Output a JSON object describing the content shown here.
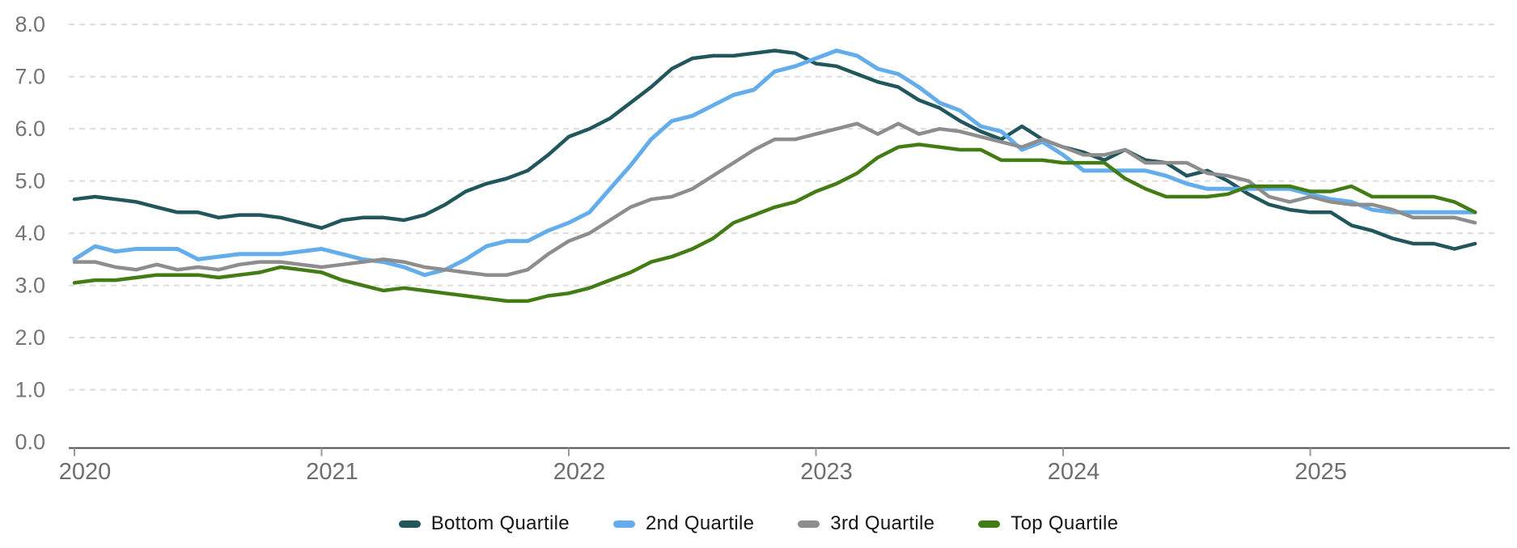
{
  "chart_data": {
    "type": "line",
    "title": "",
    "xlabel": "",
    "ylabel": "",
    "x_unit": "month",
    "x_start": "2020-01",
    "x_end": "2025-09",
    "x_tick_labels": [
      "2020",
      "2021",
      "2022",
      "2023",
      "2024",
      "2025"
    ],
    "ylim": [
      0.0,
      8.0
    ],
    "y_ticks": [
      0.0,
      1.0,
      2.0,
      3.0,
      4.0,
      5.0,
      6.0,
      7.0,
      8.0
    ],
    "y_tick_labels": [
      "0.0",
      "1.0",
      "2.0",
      "3.0",
      "4.0",
      "5.0",
      "6.0",
      "7.0",
      "8.0"
    ],
    "grid": "horizontal-dashed",
    "legend_position": "bottom",
    "series": [
      {
        "name": "Bottom Quartile",
        "color": "#20565c",
        "values": [
          4.65,
          4.7,
          4.65,
          4.6,
          4.5,
          4.4,
          4.4,
          4.3,
          4.35,
          4.35,
          4.3,
          4.2,
          4.1,
          4.25,
          4.3,
          4.3,
          4.25,
          4.35,
          4.55,
          4.8,
          4.95,
          5.05,
          5.2,
          5.5,
          5.85,
          6.0,
          6.2,
          6.5,
          6.8,
          7.15,
          7.35,
          7.4,
          7.4,
          7.45,
          7.5,
          7.45,
          7.25,
          7.2,
          7.05,
          6.9,
          6.8,
          6.55,
          6.4,
          6.15,
          5.95,
          5.8,
          6.05,
          5.8,
          5.65,
          5.55,
          5.4,
          5.6,
          5.4,
          5.35,
          5.1,
          5.2,
          5.0,
          4.75,
          4.55,
          4.45,
          4.4,
          4.4,
          4.15,
          4.05,
          3.9,
          3.8,
          3.8,
          3.7,
          3.8
        ]
      },
      {
        "name": "2nd Quartile",
        "color": "#63adec",
        "values": [
          3.5,
          3.75,
          3.65,
          3.7,
          3.7,
          3.7,
          3.5,
          3.55,
          3.6,
          3.6,
          3.6,
          3.65,
          3.7,
          3.6,
          3.5,
          3.45,
          3.35,
          3.2,
          3.3,
          3.5,
          3.75,
          3.85,
          3.85,
          4.05,
          4.2,
          4.4,
          4.85,
          5.3,
          5.8,
          6.15,
          6.25,
          6.45,
          6.65,
          6.75,
          7.1,
          7.2,
          7.35,
          7.5,
          7.4,
          7.15,
          7.05,
          6.8,
          6.5,
          6.35,
          6.05,
          5.95,
          5.6,
          5.75,
          5.5,
          5.2,
          5.2,
          5.2,
          5.2,
          5.1,
          4.95,
          4.85,
          4.85,
          4.85,
          4.85,
          4.85,
          4.75,
          4.65,
          4.6,
          4.45,
          4.4,
          4.4,
          4.4,
          4.4,
          4.4
        ]
      },
      {
        "name": "3rd Quartile",
        "color": "#8d8d8d",
        "values": [
          3.45,
          3.45,
          3.35,
          3.3,
          3.4,
          3.3,
          3.35,
          3.3,
          3.4,
          3.45,
          3.45,
          3.4,
          3.35,
          3.4,
          3.45,
          3.5,
          3.45,
          3.35,
          3.3,
          3.25,
          3.2,
          3.2,
          3.3,
          3.6,
          3.85,
          4.0,
          4.25,
          4.5,
          4.65,
          4.7,
          4.85,
          5.1,
          5.35,
          5.6,
          5.8,
          5.8,
          5.9,
          6.0,
          6.1,
          5.9,
          6.1,
          5.9,
          6.0,
          5.95,
          5.85,
          5.75,
          5.65,
          5.8,
          5.65,
          5.5,
          5.5,
          5.6,
          5.35,
          5.35,
          5.35,
          5.15,
          5.1,
          5.0,
          4.7,
          4.6,
          4.7,
          4.6,
          4.55,
          4.55,
          4.45,
          4.3,
          4.3,
          4.3,
          4.2
        ]
      },
      {
        "name": "Top Quartile",
        "color": "#437c15",
        "values": [
          3.05,
          3.1,
          3.1,
          3.15,
          3.2,
          3.2,
          3.2,
          3.15,
          3.2,
          3.25,
          3.35,
          3.3,
          3.25,
          3.1,
          3.0,
          2.9,
          2.95,
          2.9,
          2.85,
          2.8,
          2.75,
          2.7,
          2.7,
          2.8,
          2.85,
          2.95,
          3.1,
          3.25,
          3.45,
          3.55,
          3.7,
          3.9,
          4.2,
          4.35,
          4.5,
          4.6,
          4.8,
          4.95,
          5.15,
          5.45,
          5.65,
          5.7,
          5.65,
          5.6,
          5.6,
          5.4,
          5.4,
          5.4,
          5.35,
          5.35,
          5.35,
          5.05,
          4.85,
          4.7,
          4.7,
          4.7,
          4.75,
          4.9,
          4.9,
          4.9,
          4.8,
          4.8,
          4.9,
          4.7,
          4.7,
          4.7,
          4.7,
          4.6,
          4.4
        ]
      }
    ],
    "style": {
      "background": "#ffffff",
      "gridline_color": "#dcdcdc",
      "axis_line_color": "#4a4a4a",
      "tick_color": "#9a9a9a",
      "y_label_color": "#757575",
      "x_label_color": "#6e6e6e",
      "legend_text_color": "#161616"
    }
  }
}
